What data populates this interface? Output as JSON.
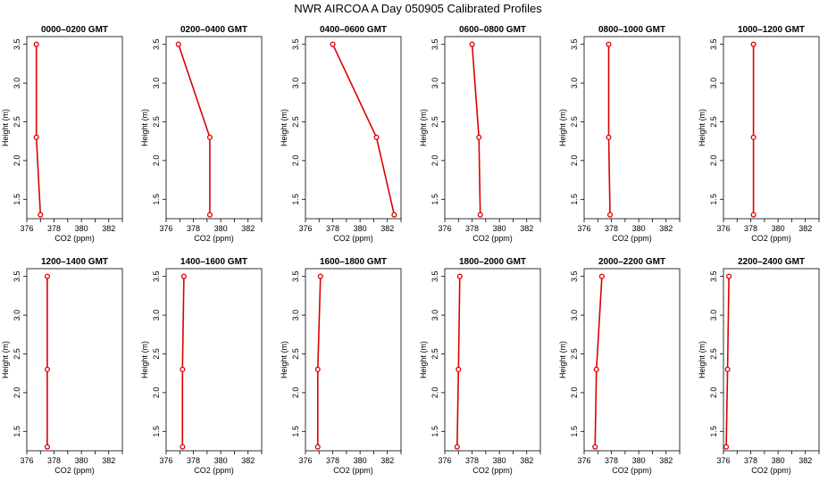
{
  "title": "NWR AIRCOA A  Day 050905  Calibrated Profiles",
  "chart_data": {
    "type": "line",
    "xlabel": "CO2 (ppm)",
    "ylabel": "Height (m)",
    "xlim": [
      376,
      383
    ],
    "ylim": [
      1.25,
      3.6
    ],
    "xticks": [
      "376",
      "378",
      "380",
      "382"
    ],
    "yticks": [
      "1.5",
      "2.0",
      "2.5",
      "3.0",
      "3.5"
    ],
    "heights": [
      3.5,
      2.3,
      1.3
    ],
    "line_color": "#dd0000",
    "panels": [
      {
        "title": "0000–0200 GMT",
        "co2": [
          376.7,
          376.7,
          377.0
        ]
      },
      {
        "title": "0200–0400 GMT",
        "co2": [
          376.9,
          379.2,
          379.2
        ]
      },
      {
        "title": "0400–0600 GMT",
        "co2": [
          378.0,
          381.2,
          382.5
        ]
      },
      {
        "title": "0600–0800 GMT",
        "co2": [
          378.0,
          378.5,
          378.6
        ]
      },
      {
        "title": "0800–1000 GMT",
        "co2": [
          377.8,
          377.8,
          377.9
        ]
      },
      {
        "title": "1000–1200 GMT",
        "co2": [
          378.2,
          378.2,
          378.2
        ]
      },
      {
        "title": "1200–1400 GMT",
        "co2": [
          377.5,
          377.5,
          377.5
        ]
      },
      {
        "title": "1400–1600 GMT",
        "co2": [
          377.3,
          377.2,
          377.2
        ]
      },
      {
        "title": "1600–1800 GMT",
        "co2": [
          377.1,
          376.9,
          376.9
        ]
      },
      {
        "title": "1800–2000 GMT",
        "co2": [
          377.1,
          377.0,
          376.9
        ]
      },
      {
        "title": "2000–2200 GMT",
        "co2": [
          377.3,
          376.9,
          376.8
        ]
      },
      {
        "title": "2200–2400 GMT",
        "co2": [
          376.4,
          376.3,
          376.2
        ]
      }
    ]
  }
}
